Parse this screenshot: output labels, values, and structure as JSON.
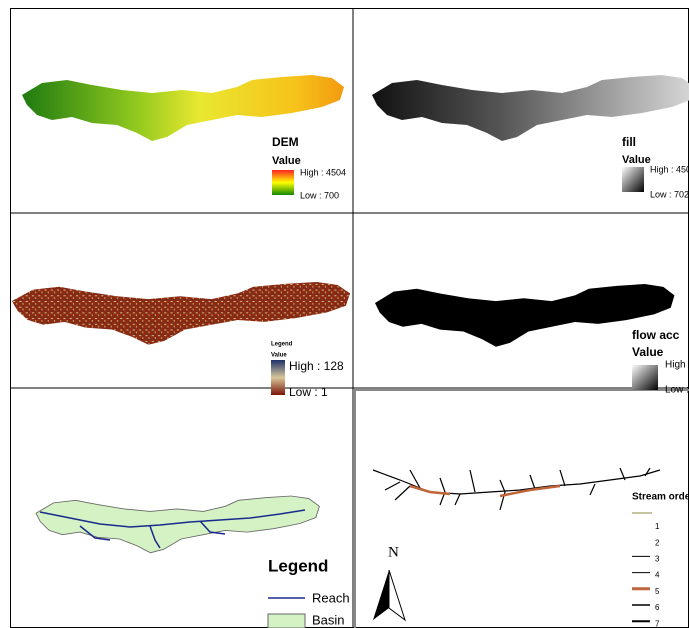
{
  "panels": [
    {
      "title": "DEM",
      "legend_label": "Value",
      "high": "High : 4504",
      "low": "Low : 700"
    },
    {
      "title": "fill",
      "legend_label": "Value",
      "high": "High : 450",
      "low": "Low : 702"
    },
    {
      "legend_title": "Legend",
      "legend_label": "Value",
      "high": "High : 128",
      "low": "Low : 1"
    },
    {
      "title": "flow acc",
      "legend_label": "Value",
      "high": "High :",
      "low": "Low :"
    },
    {
      "legend_title": "Legend",
      "items": [
        "Reach",
        "Basin"
      ]
    },
    {
      "north": "N",
      "legend_title": "Stream orde",
      "items": [
        "1",
        "2",
        "3",
        "4",
        "5",
        "6",
        "7"
      ]
    }
  ]
}
